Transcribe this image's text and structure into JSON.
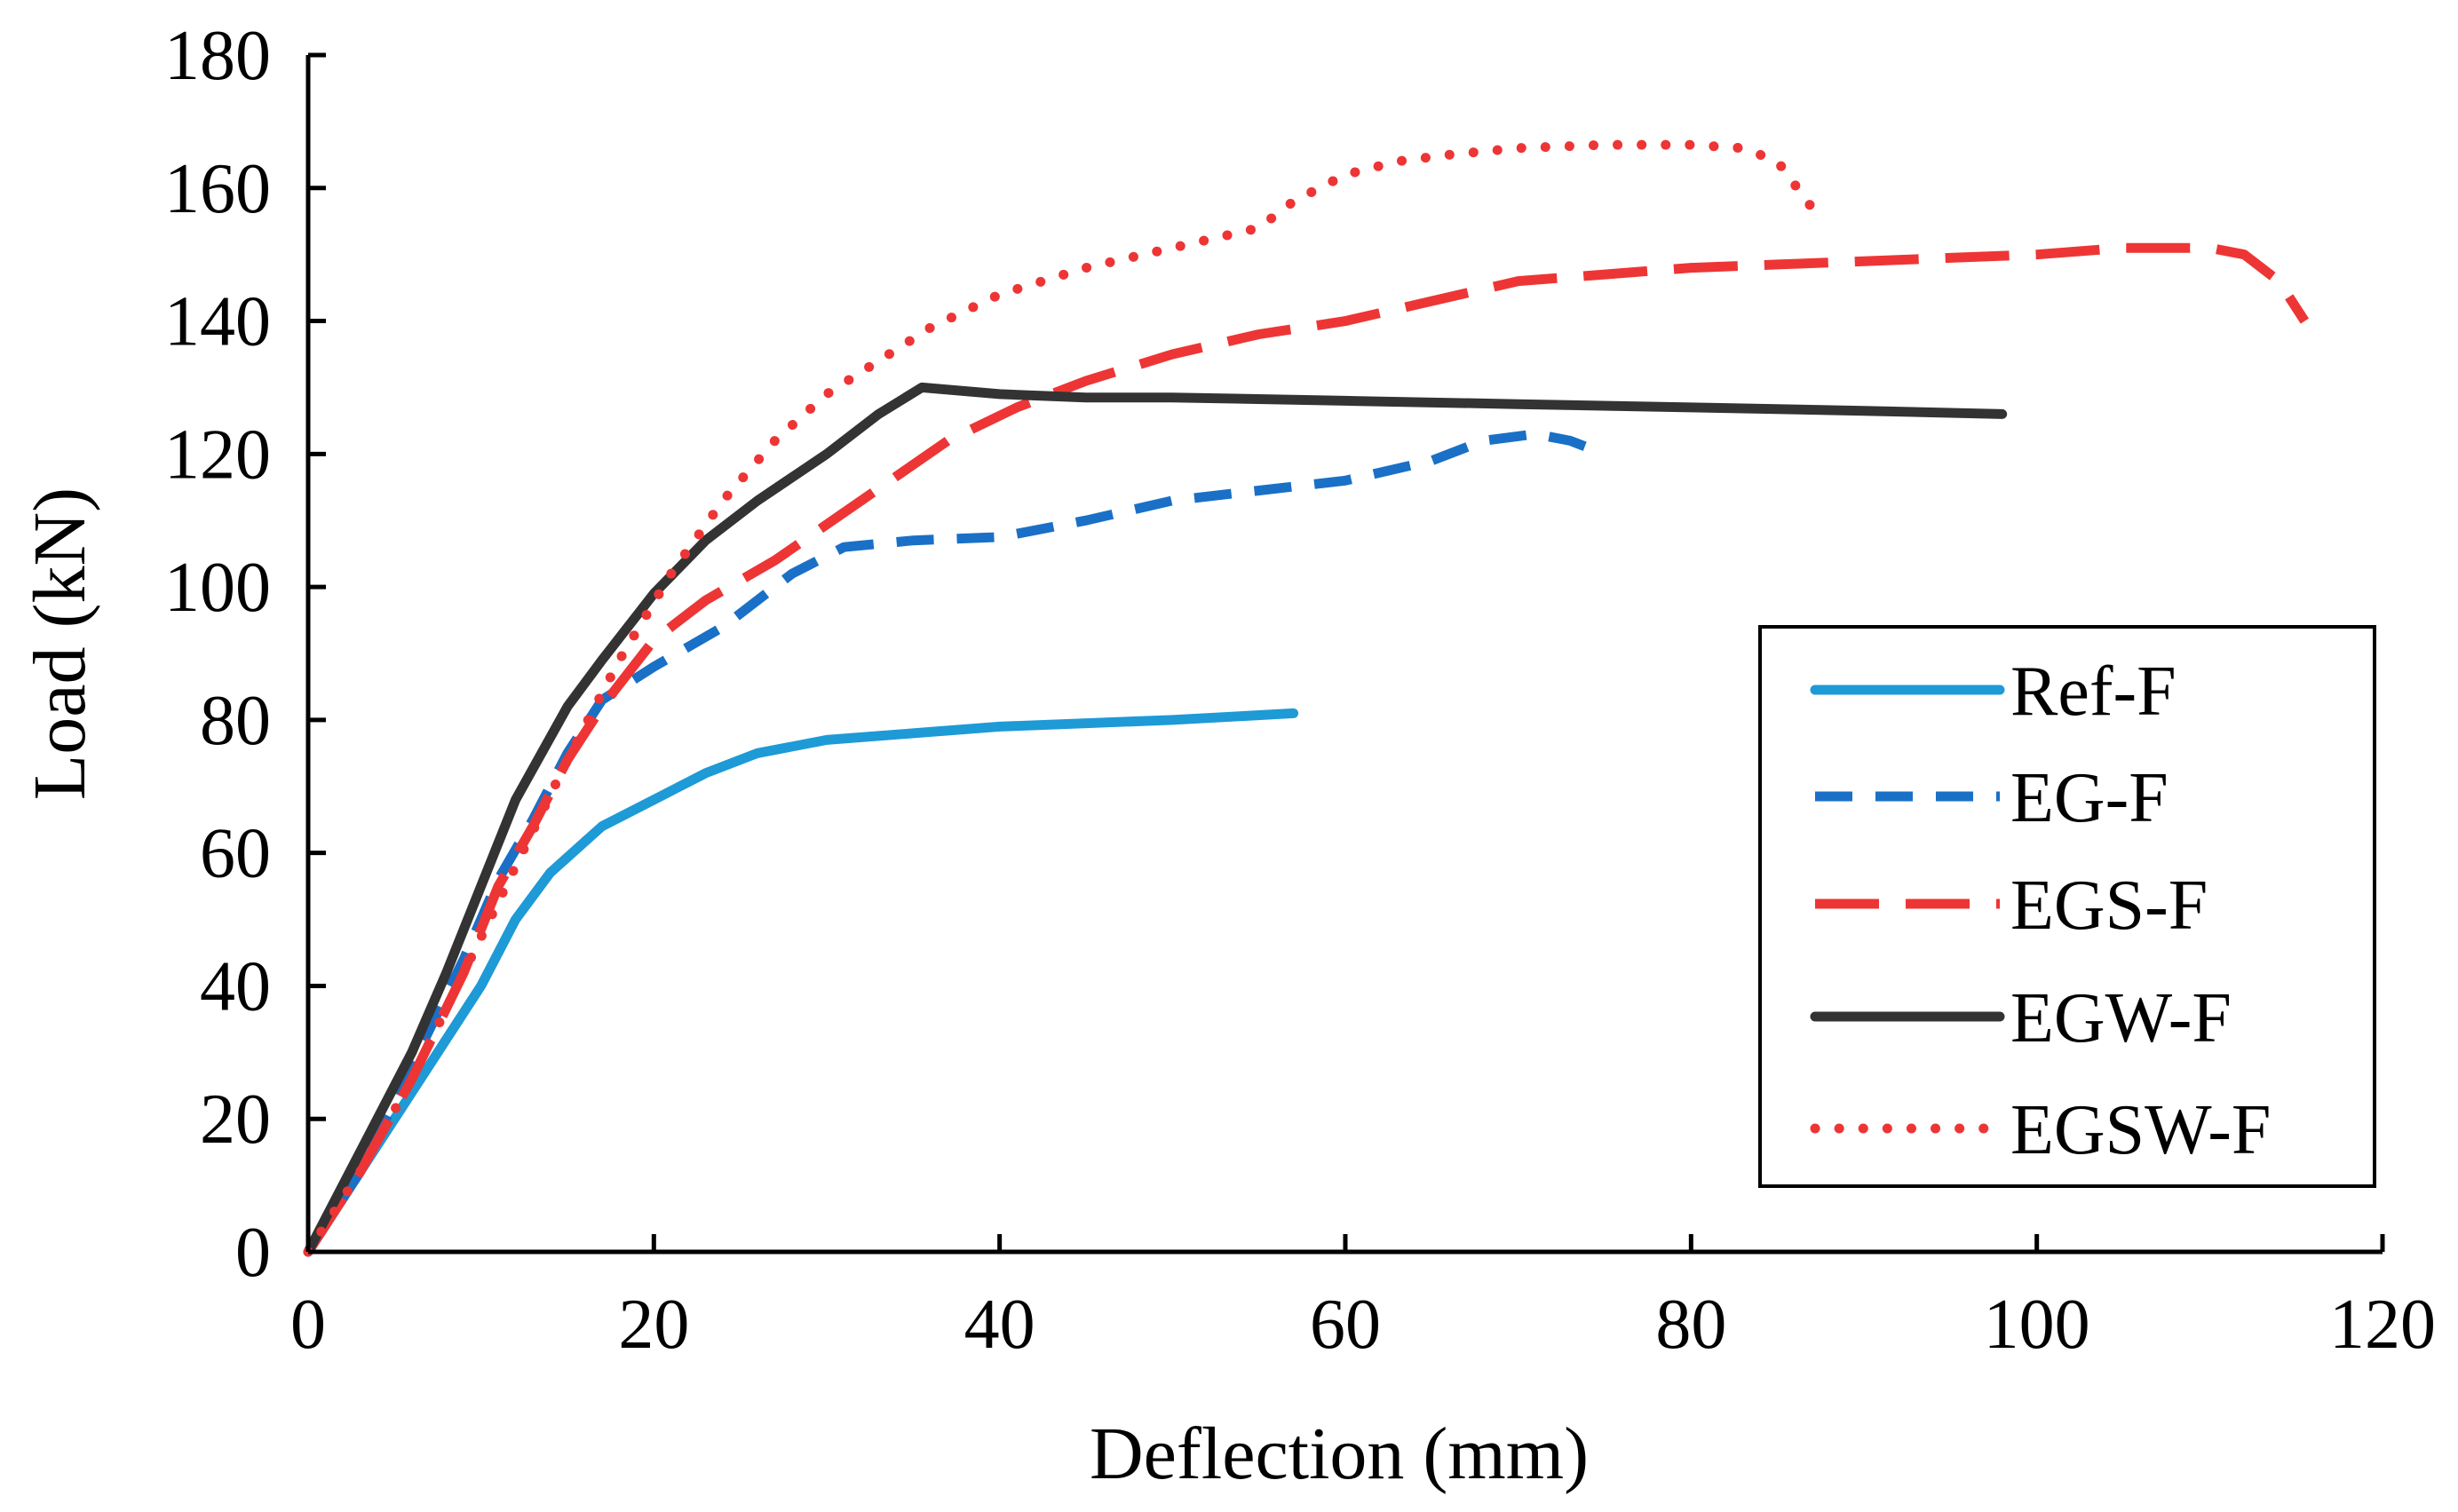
{
  "chart_data": {
    "type": "line",
    "title": "",
    "xlabel": "Deflection (mm)",
    "ylabel": "Load (kN)",
    "xlim": [
      0,
      120
    ],
    "ylim": [
      0,
      180
    ],
    "x_ticks": [
      "0",
      "20",
      "40",
      "60",
      "80",
      "100",
      "120"
    ],
    "y_ticks": [
      "0",
      "20",
      "40",
      "60",
      "80",
      "100",
      "120",
      "140",
      "160",
      "180"
    ],
    "grid": false,
    "legend_position": "right",
    "series": [
      {
        "name": "Ref-F",
        "color": "#1e9ad6",
        "style": "solid",
        "points": [
          [
            0,
            0
          ],
          [
            2,
            8
          ],
          [
            5,
            20
          ],
          [
            8,
            32
          ],
          [
            10,
            40
          ],
          [
            12,
            50
          ],
          [
            14,
            57
          ],
          [
            17,
            64
          ],
          [
            20,
            68
          ],
          [
            23,
            72
          ],
          [
            26,
            75
          ],
          [
            30,
            77
          ],
          [
            35,
            78
          ],
          [
            40,
            79
          ],
          [
            45,
            79.5
          ],
          [
            50,
            80
          ],
          [
            57,
            81
          ]
        ]
      },
      {
        "name": "EG-F",
        "color": "#1a70c6",
        "style": "dashed",
        "points": [
          [
            0,
            0
          ],
          [
            3,
            12
          ],
          [
            6,
            28
          ],
          [
            9,
            44
          ],
          [
            11,
            56
          ],
          [
            13,
            65
          ],
          [
            15,
            75
          ],
          [
            17,
            83
          ],
          [
            20,
            88
          ],
          [
            24,
            94
          ],
          [
            28,
            102
          ],
          [
            31,
            106
          ],
          [
            35,
            107
          ],
          [
            40,
            107.5
          ],
          [
            45,
            110
          ],
          [
            50,
            113
          ],
          [
            55,
            114.5
          ],
          [
            60,
            116
          ],
          [
            65,
            119
          ],
          [
            68,
            122
          ],
          [
            71,
            123
          ],
          [
            73,
            122
          ],
          [
            75,
            120
          ]
        ]
      },
      {
        "name": "EGS-F",
        "color": "#ee3535",
        "style": "longdash",
        "points": [
          [
            0,
            0
          ],
          [
            3,
            12
          ],
          [
            6,
            26
          ],
          [
            9,
            42
          ],
          [
            11,
            55
          ],
          [
            13,
            64
          ],
          [
            15,
            74
          ],
          [
            17,
            82
          ],
          [
            20,
            92
          ],
          [
            23,
            98
          ],
          [
            27,
            104
          ],
          [
            32,
            113
          ],
          [
            37,
            122
          ],
          [
            41,
            127
          ],
          [
            45,
            131
          ],
          [
            50,
            135
          ],
          [
            55,
            138
          ],
          [
            60,
            140
          ],
          [
            65,
            143
          ],
          [
            70,
            146
          ],
          [
            75,
            147
          ],
          [
            80,
            148
          ],
          [
            85,
            148.5
          ],
          [
            90,
            149
          ],
          [
            95,
            149.5
          ],
          [
            100,
            150
          ],
          [
            105,
            151
          ],
          [
            110,
            151
          ],
          [
            112,
            150
          ],
          [
            114,
            146
          ],
          [
            115.5,
            140
          ]
        ]
      },
      {
        "name": "EGW-F",
        "color": "#333333",
        "style": "solid",
        "points": [
          [
            0,
            0
          ],
          [
            2,
            10
          ],
          [
            4,
            20
          ],
          [
            6,
            30
          ],
          [
            8,
            42
          ],
          [
            10,
            55
          ],
          [
            12,
            68
          ],
          [
            15,
            82
          ],
          [
            17,
            89
          ],
          [
            20,
            99
          ],
          [
            23,
            107
          ],
          [
            26,
            113
          ],
          [
            30,
            120
          ],
          [
            33,
            126
          ],
          [
            35.5,
            130
          ],
          [
            40,
            129
          ],
          [
            45,
            128.5
          ],
          [
            50,
            128.5
          ],
          [
            60,
            128
          ],
          [
            70,
            127.5
          ],
          [
            80,
            127
          ],
          [
            90,
            126.5
          ],
          [
            98,
            126
          ]
        ]
      },
      {
        "name": "EGSW-F",
        "color": "#ee3535",
        "style": "dotted",
        "points": [
          [
            0,
            0
          ],
          [
            3,
            12
          ],
          [
            6,
            26
          ],
          [
            9,
            42
          ],
          [
            12,
            58
          ],
          [
            15,
            74
          ],
          [
            18,
            89
          ],
          [
            21,
            102
          ],
          [
            24,
            113
          ],
          [
            27,
            122
          ],
          [
            30,
            129
          ],
          [
            33,
            134
          ],
          [
            36,
            139
          ],
          [
            40,
            144
          ],
          [
            45,
            148
          ],
          [
            50,
            151
          ],
          [
            55,
            154
          ],
          [
            57,
            158
          ],
          [
            60,
            162
          ],
          [
            63,
            164
          ],
          [
            66,
            165
          ],
          [
            70,
            166
          ],
          [
            75,
            166.5
          ],
          [
            80,
            166.5
          ],
          [
            83,
            166
          ],
          [
            85,
            164
          ],
          [
            87,
            157
          ]
        ]
      }
    ]
  }
}
